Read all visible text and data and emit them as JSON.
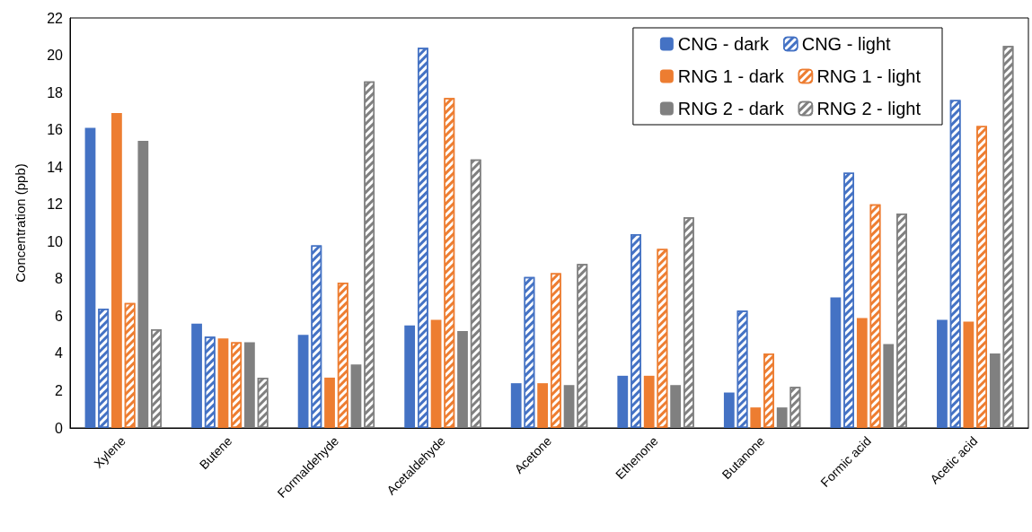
{
  "chart_data": {
    "type": "bar",
    "ylabel": "Concentration (ppb)",
    "categories": [
      "Xylene",
      "Butene",
      "Formaldehyde",
      "Acetaldehyde",
      "Acetone",
      "Ethenone",
      "Butanone",
      "Formic acid",
      "Acetic acid"
    ],
    "series": [
      {
        "name": "CNG - dark",
        "color": "#4472c4",
        "values": [
          16.1,
          5.6,
          5.0,
          5.5,
          2.4,
          2.8,
          1.9,
          7.0,
          5.8
        ]
      },
      {
        "name": "CNG - light",
        "color": "#4472c4",
        "values": [
          6.4,
          4.9,
          9.8,
          20.4,
          8.1,
          10.4,
          6.3,
          13.7,
          17.6
        ]
      },
      {
        "name": "RNG 1 - dark",
        "color": "#ed7d31",
        "values": [
          16.9,
          4.8,
          2.7,
          5.8,
          2.4,
          2.8,
          1.1,
          5.9,
          5.7
        ]
      },
      {
        "name": "RNG 1 - light",
        "color": "#ed7d31",
        "values": [
          6.7,
          4.6,
          7.8,
          17.7,
          8.3,
          9.6,
          4.0,
          12.0,
          16.2
        ]
      },
      {
        "name": "RNG 2 - dark",
        "color": "#808080",
        "values": [
          15.4,
          4.6,
          3.4,
          5.2,
          2.3,
          2.3,
          1.1,
          4.5,
          4.0
        ]
      },
      {
        "name": "RNG 2 - light",
        "color": "#808080",
        "values": [
          5.3,
          2.7,
          18.6,
          14.4,
          8.8,
          11.3,
          2.2,
          11.5,
          20.5
        ]
      }
    ],
    "ylim": [
      0,
      22
    ],
    "yticks": [
      0,
      2,
      4,
      6,
      8,
      10,
      12,
      14,
      16,
      18,
      20,
      22
    ],
    "grid": false,
    "legend": "top right"
  }
}
